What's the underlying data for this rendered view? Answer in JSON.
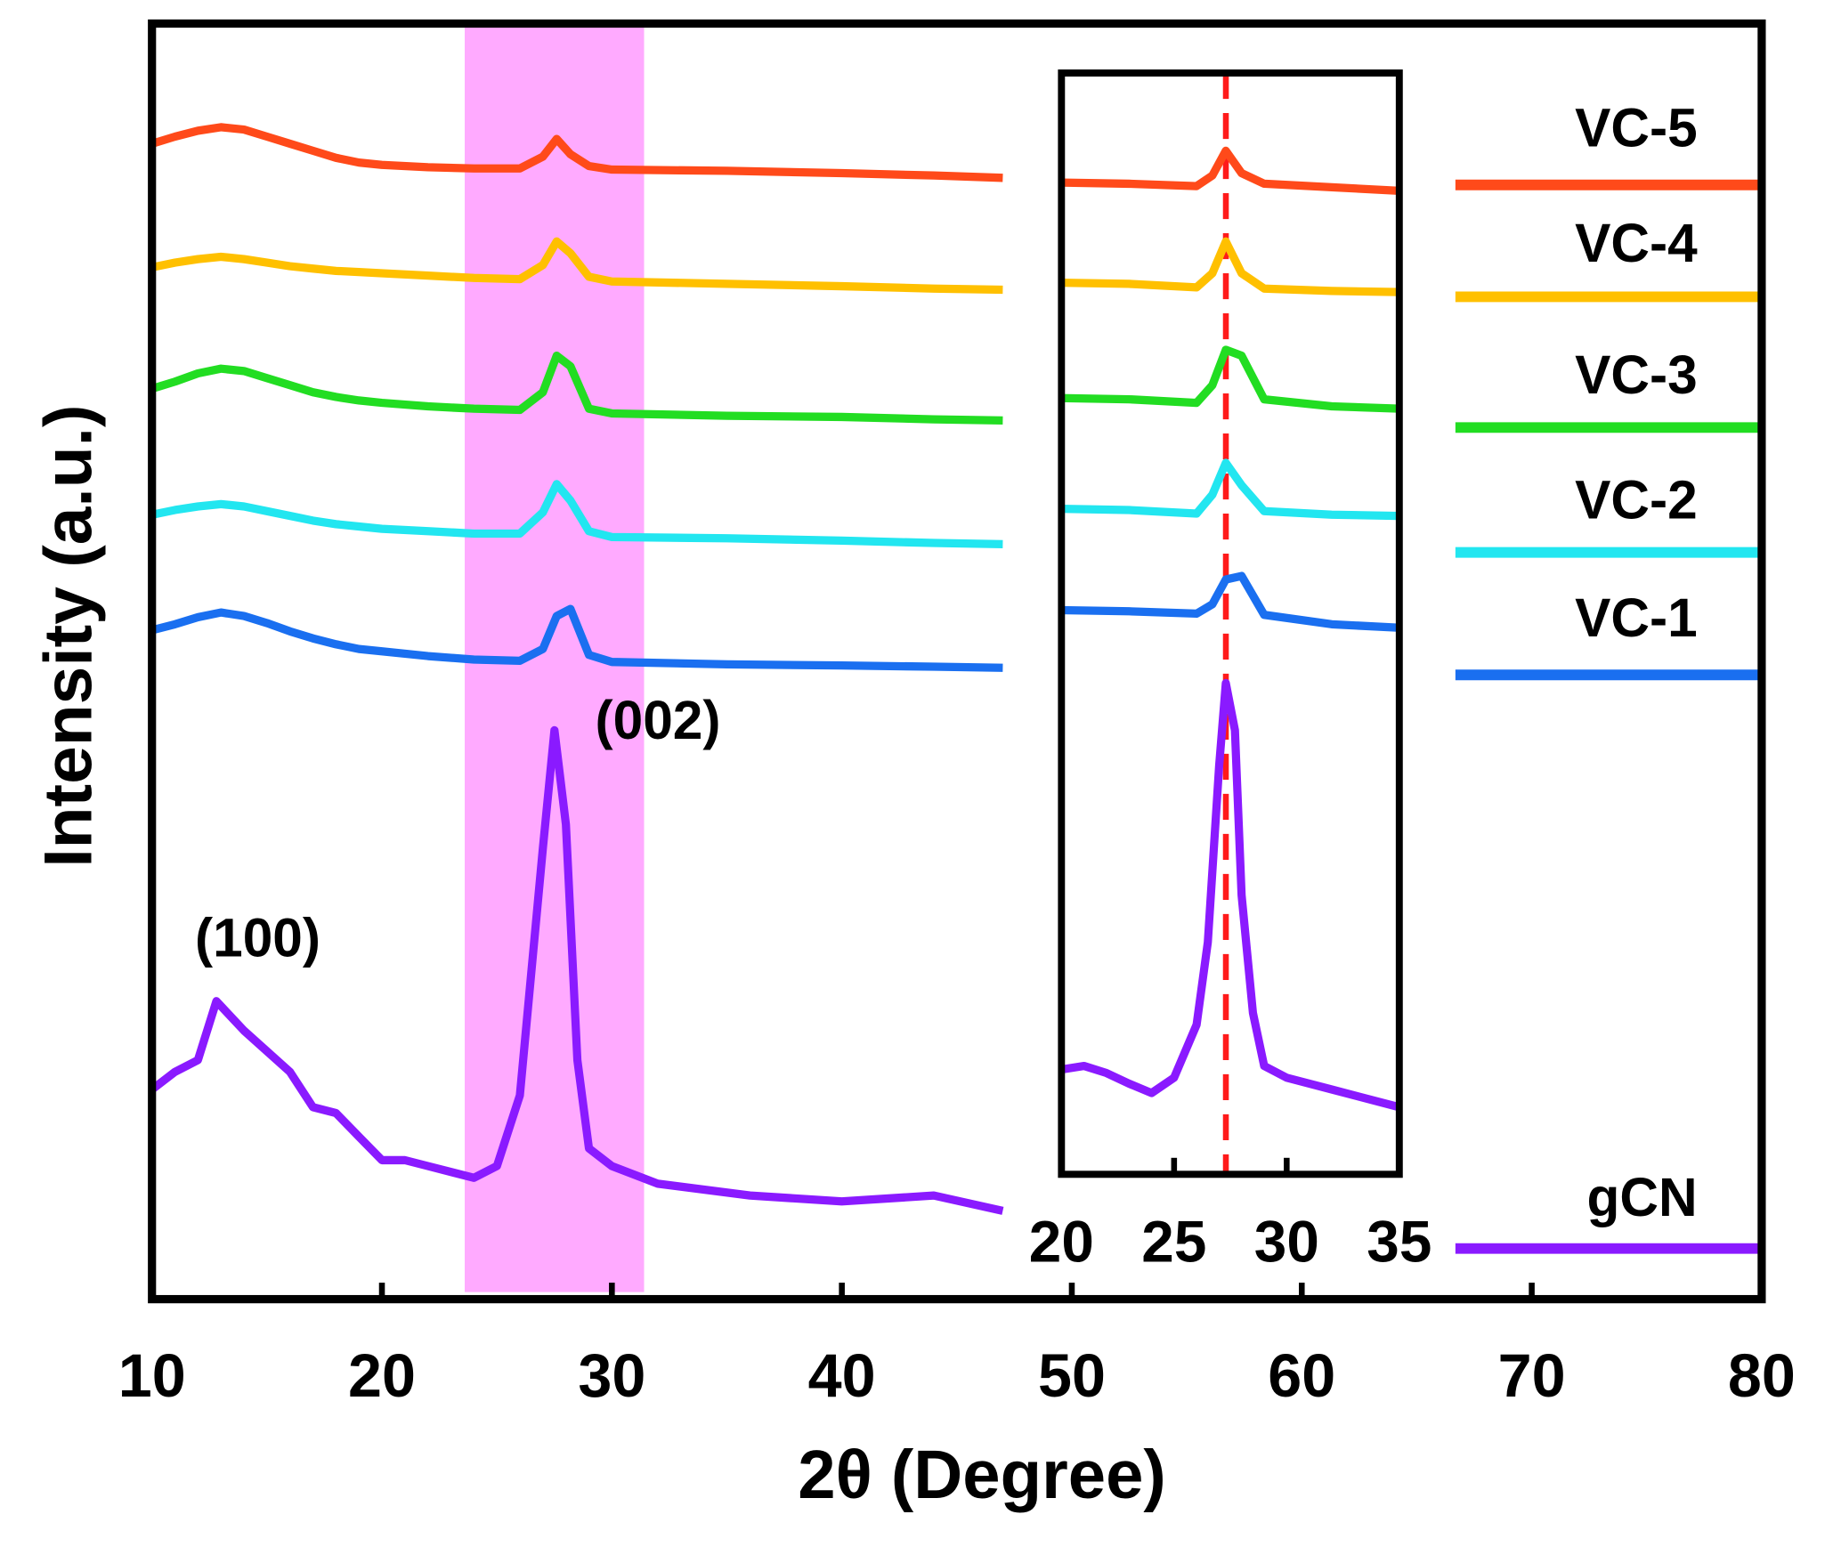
{
  "chart_data": [
    {
      "type": "line",
      "x_label": "2θ (Degree)",
      "y_label": "Intensity (a.u.)",
      "xlim": [
        10,
        80
      ],
      "xticks": [
        10,
        20,
        30,
        40,
        50,
        60,
        70,
        80
      ],
      "ylim": [
        0,
        1083
      ],
      "highlight_x": [
        23.6,
        31.4
      ],
      "highlight_color": "#ff7dff",
      "annotations": [
        {
          "text": "(100)",
          "x": 14.6,
          "y": 303
        },
        {
          "text": "(002)",
          "x": 32.0,
          "y": 488
        }
      ],
      "series": [
        {
          "name": "VC-5",
          "color": "#ff4a1a",
          "x": [
            10,
            11,
            12,
            13,
            14,
            15,
            16,
            17,
            18,
            19,
            20,
            22,
            24,
            26,
            27,
            27.6,
            28.2,
            29,
            30,
            35,
            40,
            44,
            47
          ],
          "values": [
            981,
            987,
            992,
            995,
            993,
            987,
            981,
            975,
            969,
            965,
            963,
            961,
            960,
            960,
            970,
            985,
            972,
            962,
            959,
            958,
            956,
            954,
            952
          ]
        },
        {
          "name": "VC-4",
          "color": "#ffc000",
          "x": [
            10,
            11,
            12,
            13,
            14,
            15,
            16,
            17,
            18,
            19,
            20,
            22,
            24,
            26,
            27,
            27.6,
            28.2,
            29,
            30,
            35,
            40,
            44,
            47
          ],
          "values": [
            876,
            880,
            883,
            885,
            883,
            880,
            877,
            875,
            873,
            872,
            871,
            869,
            867,
            866,
            878,
            898,
            888,
            868,
            864,
            862,
            860,
            858,
            857
          ]
        },
        {
          "name": "VC-3",
          "color": "#22dd22",
          "x": [
            10,
            11,
            12,
            13,
            14,
            15,
            16,
            17,
            18,
            19,
            20,
            22,
            24,
            26,
            27,
            27.6,
            28.2,
            29,
            30,
            35,
            40,
            44,
            47
          ],
          "values": [
            773,
            779,
            786,
            790,
            788,
            782,
            776,
            770,
            766,
            763,
            761,
            758,
            756,
            755,
            770,
            801,
            792,
            756,
            752,
            750,
            749,
            747,
            746
          ]
        },
        {
          "name": "VC-2",
          "color": "#22e6f0",
          "x": [
            10,
            11,
            12,
            13,
            14,
            15,
            16,
            17,
            18,
            19,
            20,
            22,
            24,
            26,
            27,
            27.6,
            28.2,
            29,
            30,
            35,
            40,
            44,
            47
          ],
          "values": [
            666,
            670,
            673,
            675,
            673,
            669,
            665,
            661,
            658,
            656,
            654,
            652,
            650,
            650,
            668,
            692,
            678,
            652,
            647,
            646,
            644,
            642,
            641
          ]
        },
        {
          "name": "VC-1",
          "color": "#1a6ff0",
          "x": [
            10,
            11,
            12,
            13,
            14,
            15,
            16,
            17,
            18,
            19,
            20,
            22,
            24,
            26,
            27,
            27.6,
            28.2,
            29,
            30,
            35,
            40,
            44,
            47
          ],
          "values": [
            568,
            573,
            579,
            583,
            580,
            574,
            567,
            561,
            556,
            552,
            550,
            546,
            543,
            542,
            552,
            580,
            586,
            547,
            541,
            539,
            538,
            537,
            536
          ]
        },
        {
          "name": "gCN",
          "color": "#8a1aff",
          "x": [
            10,
            11,
            12,
            12.8,
            14,
            16,
            17,
            18,
            19,
            20,
            21,
            22,
            24,
            25,
            26,
            27,
            27.5,
            28,
            28.5,
            29,
            30,
            32,
            36,
            40,
            44,
            47
          ],
          "values": [
            178,
            193,
            203,
            253,
            228,
            193,
            163,
            158,
            138,
            118,
            118,
            113,
            103,
            113,
            173,
            383,
            483,
            403,
            203,
            128,
            113,
            98,
            88,
            83,
            88,
            75
          ]
        }
      ]
    },
    {
      "type": "line",
      "xlim": [
        20,
        35
      ],
      "xticks": [
        20,
        25,
        30,
        35
      ],
      "ylim": [
        0,
        935
      ],
      "reference_x": 27.3,
      "reference_color": "#ff1a1a",
      "series": [
        {
          "color": "#ff4a1a",
          "x": [
            20,
            23,
            26,
            26.7,
            27.3,
            28,
            29,
            32,
            35
          ],
          "values": [
            842,
            841,
            839,
            848,
            869,
            850,
            841,
            838,
            835
          ]
        },
        {
          "color": "#ffc000",
          "x": [
            20,
            23,
            26,
            26.7,
            27.3,
            28,
            29,
            32,
            35
          ],
          "values": [
            757,
            756,
            753,
            765,
            792,
            765,
            752,
            750,
            749
          ]
        },
        {
          "color": "#22dd22",
          "x": [
            20,
            23,
            26,
            26.7,
            27.3,
            28,
            29,
            32,
            35
          ],
          "values": [
            659,
            658,
            655,
            670,
            700,
            695,
            658,
            652,
            650
          ]
        },
        {
          "color": "#22e6f0",
          "x": [
            20,
            23,
            26,
            26.7,
            27.3,
            28,
            29,
            32,
            35
          ],
          "values": [
            565,
            564,
            561,
            577,
            604,
            585,
            563,
            560,
            559
          ]
        },
        {
          "color": "#1a6ff0",
          "x": [
            20,
            23,
            26,
            26.7,
            27.3,
            28,
            29,
            32,
            35
          ],
          "values": [
            479,
            478,
            476,
            484,
            505,
            508,
            475,
            467,
            464
          ]
        },
        {
          "color": "#8a1aff",
          "x": [
            20,
            21,
            22,
            23,
            24,
            25,
            26,
            26.5,
            27,
            27.3,
            27.7,
            28,
            28.5,
            29,
            30,
            32,
            35
          ],
          "values": [
            89,
            92,
            86,
            77,
            69,
            82,
            127,
            197,
            347,
            417,
            377,
            237,
            137,
            92,
            82,
            72,
            57
          ]
        }
      ]
    }
  ]
}
